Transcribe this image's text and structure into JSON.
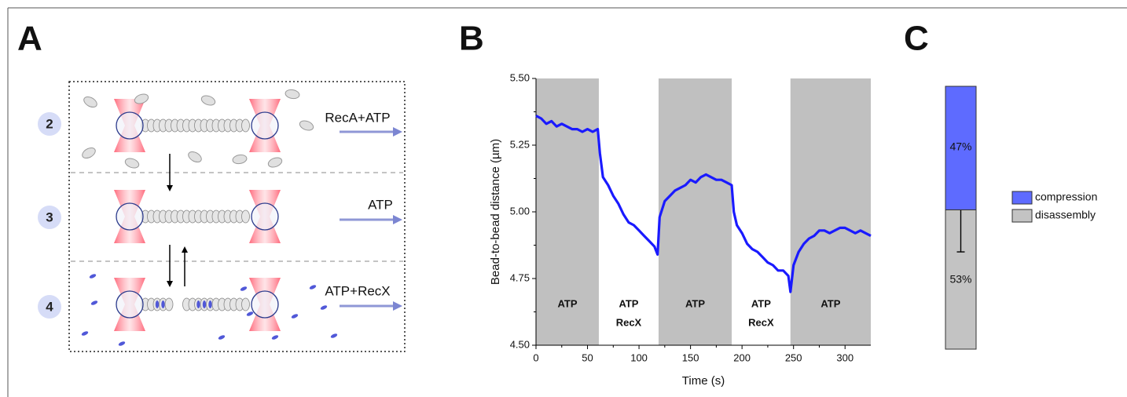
{
  "panels": [
    "A",
    "B",
    "C"
  ],
  "diagram": {
    "steps": [
      {
        "number": "2",
        "label": "RecA+ATP"
      },
      {
        "number": "3",
        "label": "ATP"
      },
      {
        "number": "4",
        "label": "ATP+RecX"
      }
    ]
  },
  "chart_data": [
    {
      "type": "line",
      "x_label": "Time (s)",
      "y_label": "Bead-to-bead distance (µm)",
      "x": [
        0,
        5,
        10,
        15,
        20,
        25,
        30,
        35,
        40,
        45,
        50,
        55,
        60,
        62,
        65,
        70,
        75,
        80,
        85,
        90,
        95,
        100,
        105,
        110,
        115,
        118,
        120,
        125,
        130,
        135,
        140,
        145,
        150,
        155,
        160,
        165,
        170,
        175,
        180,
        185,
        190,
        192,
        195,
        200,
        205,
        210,
        215,
        220,
        225,
        230,
        235,
        240,
        245,
        247,
        250,
        255,
        260,
        265,
        270,
        275,
        280,
        285,
        290,
        295,
        300,
        305,
        310,
        315,
        320,
        325
      ],
      "values": [
        5.36,
        5.35,
        5.33,
        5.34,
        5.32,
        5.33,
        5.32,
        5.31,
        5.31,
        5.3,
        5.31,
        5.3,
        5.31,
        5.22,
        5.13,
        5.1,
        5.06,
        5.03,
        4.99,
        4.96,
        4.95,
        4.93,
        4.91,
        4.89,
        4.87,
        4.84,
        4.98,
        5.04,
        5.06,
        5.08,
        5.09,
        5.1,
        5.12,
        5.11,
        5.13,
        5.14,
        5.13,
        5.12,
        5.12,
        5.11,
        5.1,
        5.0,
        4.95,
        4.92,
        4.88,
        4.86,
        4.85,
        4.83,
        4.81,
        4.8,
        4.78,
        4.78,
        4.76,
        4.7,
        4.8,
        4.85,
        4.88,
        4.9,
        4.91,
        4.93,
        4.93,
        4.92,
        4.93,
        4.94,
        4.94,
        4.93,
        4.92,
        4.93,
        4.92,
        4.91
      ],
      "color": "#1a1aff",
      "xlim": [
        0,
        325
      ],
      "xticks": [
        0,
        50,
        100,
        150,
        200,
        250,
        300
      ],
      "ylim": [
        4.5,
        5.5
      ],
      "yticks": [
        {
          "value": 4.5,
          "label": "4.50"
        },
        {
          "value": 4.75,
          "label": "4.75"
        },
        {
          "value": 5,
          "label": "5.00"
        },
        {
          "value": 5.25,
          "label": "5.25"
        },
        {
          "value": 5.5,
          "label": "5.50"
        }
      ],
      "regions": [
        {
          "start": 0,
          "end": 61,
          "label": [
            "ATP"
          ],
          "shaded": true
        },
        {
          "start": 61,
          "end": 119,
          "label": [
            "ATP",
            "RecX"
          ],
          "shaded": false
        },
        {
          "start": 119,
          "end": 190,
          "label": [
            "ATP"
          ],
          "shaded": true
        },
        {
          "start": 190,
          "end": 247,
          "label": [
            "ATP",
            "RecX"
          ],
          "shaded": false
        },
        {
          "start": 247,
          "end": 325,
          "label": [
            "ATP"
          ],
          "shaded": true
        }
      ],
      "region_color": "#c0c0c0"
    },
    {
      "type": "stacked_bar",
      "ylim": [
        0,
        100
      ],
      "series": [
        {
          "name": "disassembly",
          "color": "#c3c3c3",
          "values": [
            53
          ],
          "value_labels": [
            "53%"
          ]
        },
        {
          "name": "compression",
          "color": "#5e6bff",
          "values": [
            47
          ],
          "value_labels": [
            "47%"
          ]
        }
      ],
      "error": 16
    }
  ]
}
